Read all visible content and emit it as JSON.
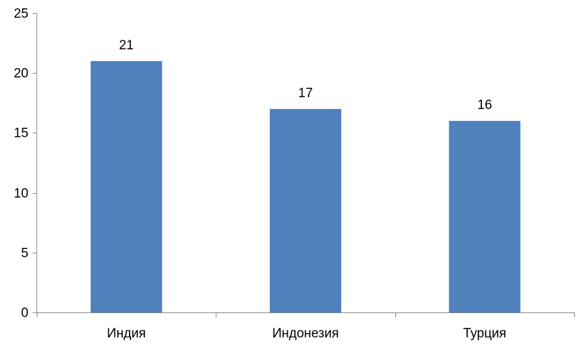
{
  "chart_data": {
    "type": "bar",
    "title": "",
    "xlabel": "",
    "ylabel": "",
    "categories": [
      "Индия",
      "Индонезия",
      "Турция"
    ],
    "series": [
      {
        "values": [
          21,
          17,
          16
        ]
      }
    ],
    "ylim": [
      0,
      25
    ],
    "yticks": [
      0,
      5,
      10,
      15,
      20,
      25
    ],
    "data_labels": [
      "21",
      "17",
      "16"
    ],
    "grid": false,
    "legend": "none",
    "colors": {
      "bar": "#4F81BD",
      "axis": "#868686",
      "text": "#000000"
    }
  }
}
